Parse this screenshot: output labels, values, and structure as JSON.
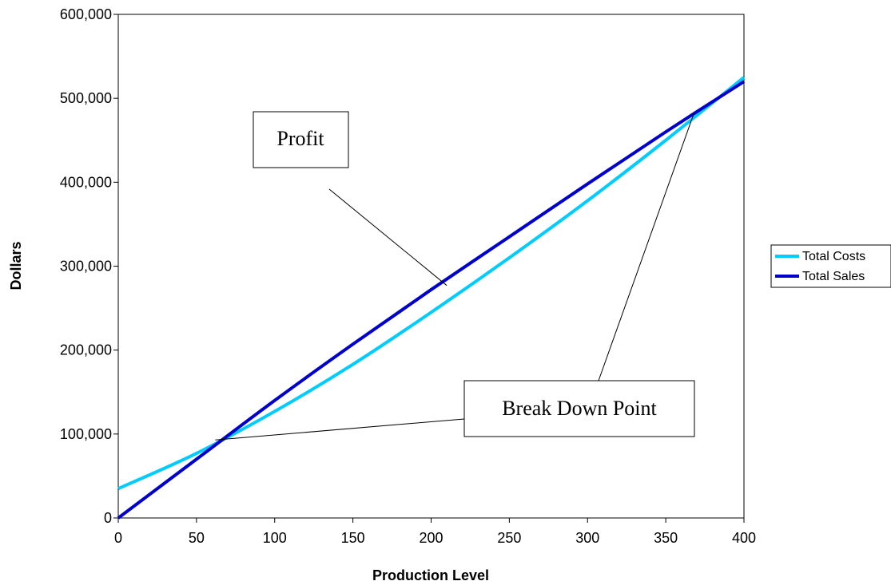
{
  "colors": {
    "total_costs": "#00ccff",
    "total_sales": "#0000cc",
    "axis": "#000000",
    "background": "#ffffff"
  },
  "chart_data": {
    "type": "line",
    "title": "",
    "xlabel": "Production Level",
    "ylabel": "Dollars",
    "xlim": [
      0,
      400
    ],
    "ylim": [
      0,
      600000
    ],
    "grid": false,
    "legend_position": "right",
    "x_ticks": [
      "0",
      "50",
      "100",
      "150",
      "200",
      "250",
      "300",
      "350",
      "400"
    ],
    "y_ticks": [
      "0",
      "100,000",
      "200,000",
      "300,000",
      "400,000",
      "500,000",
      "600,000"
    ],
    "x": [
      0,
      50,
      100,
      150,
      200,
      250,
      300,
      350,
      400
    ],
    "series": [
      {
        "name": "Total Costs",
        "color": "#00ccff",
        "values": [
          35000,
          77000,
          127000,
          183000,
          245000,
          310000,
          378000,
          450000,
          525000
        ]
      },
      {
        "name": "Total Sales",
        "color": "#0000cc",
        "values": [
          0,
          70000,
          140000,
          207000,
          272000,
          335000,
          398000,
          460000,
          520000
        ]
      }
    ],
    "annotations": [
      {
        "text": "Profit",
        "points_to": {
          "x": 210,
          "y": 277000
        }
      },
      {
        "text": "Break Down Point",
        "points_to": [
          {
            "x": 62,
            "y": 93000
          },
          {
            "x": 368,
            "y": 482000
          }
        ]
      }
    ]
  }
}
